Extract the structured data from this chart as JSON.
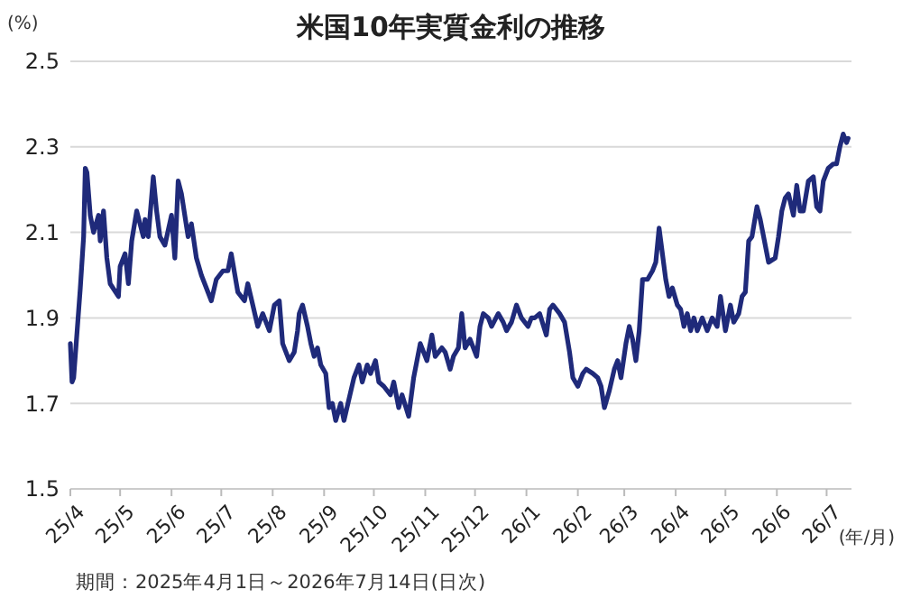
{
  "chart_data": {
    "type": "line",
    "title": "米国10年実質金利の推移",
    "ylabel": "(%)",
    "xlabel": "(年/月)",
    "annotations": [
      "期間：2025年4月1日～2026年7月14日(日次)"
    ],
    "xlim": [
      "2025-04-01",
      "2026-07-16"
    ],
    "xticks": [
      {
        "value": "2025-04-01",
        "label": "25/4"
      },
      {
        "value": "2025-05-01",
        "label": "25/5"
      },
      {
        "value": "2025-06-01",
        "label": "25/6"
      },
      {
        "value": "2025-07-01",
        "label": "25/7"
      },
      {
        "value": "2025-08-01",
        "label": "25/8"
      },
      {
        "value": "2025-09-01",
        "label": "25/9"
      },
      {
        "value": "2025-10-01",
        "label": "25/10"
      },
      {
        "value": "2025-11-01",
        "label": "25/11"
      },
      {
        "value": "2025-12-01",
        "label": "25/12"
      },
      {
        "value": "2026-01-01",
        "label": "26/1"
      },
      {
        "value": "2026-02-01",
        "label": "26/2"
      },
      {
        "value": "2026-03-01",
        "label": "26/3"
      },
      {
        "value": "2026-04-01",
        "label": "26/4"
      },
      {
        "value": "2026-05-01",
        "label": "26/5"
      },
      {
        "value": "2026-06-01",
        "label": "26/6"
      },
      {
        "value": "2026-07-01",
        "label": "26/7"
      }
    ],
    "ylim": [
      1.5,
      2.5
    ],
    "yticks": [
      1.5,
      1.7,
      1.9,
      2.1,
      2.3,
      2.5
    ],
    "grid": "y",
    "marker": "none",
    "line_style": "solid",
    "x": [
      "2025-04-01",
      "2025-04-02",
      "2025-04-03",
      "2025-04-07",
      "2025-04-09",
      "2025-04-10",
      "2025-04-11",
      "2025-04-13",
      "2025-04-15",
      "2025-04-18",
      "2025-04-19",
      "2025-04-21",
      "2025-04-23",
      "2025-04-25",
      "2025-04-30",
      "2025-05-01",
      "2025-05-04",
      "2025-05-06",
      "2025-05-08",
      "2025-05-11",
      "2025-05-15",
      "2025-05-16",
      "2025-05-18",
      "2025-05-21",
      "2025-05-23",
      "2025-05-25",
      "2025-05-28",
      "2025-06-01",
      "2025-06-03",
      "2025-06-05",
      "2025-06-07",
      "2025-06-11",
      "2025-06-13",
      "2025-06-16",
      "2025-06-19",
      "2025-06-22",
      "2025-06-25",
      "2025-06-28",
      "2025-07-02",
      "2025-07-05",
      "2025-07-07",
      "2025-07-11",
      "2025-07-15",
      "2025-07-17",
      "2025-07-20",
      "2025-07-23",
      "2025-07-26",
      "2025-07-30",
      "2025-08-02",
      "2025-08-05",
      "2025-08-07",
      "2025-08-11",
      "2025-08-14",
      "2025-08-16",
      "2025-08-17",
      "2025-08-19",
      "2025-08-22",
      "2025-08-24",
      "2025-08-26",
      "2025-08-28",
      "2025-08-30",
      "2025-09-02",
      "2025-09-04",
      "2025-09-06",
      "2025-09-08",
      "2025-09-11",
      "2025-09-13",
      "2025-09-16",
      "2025-09-19",
      "2025-09-22",
      "2025-09-24",
      "2025-09-27",
      "2025-09-29",
      "2025-10-02",
      "2025-10-04",
      "2025-10-07",
      "2025-10-11",
      "2025-10-13",
      "2025-10-16",
      "2025-10-18",
      "2025-10-22",
      "2025-10-25",
      "2025-10-27",
      "2025-10-29",
      "2025-11-02",
      "2025-11-05",
      "2025-11-07",
      "2025-11-11",
      "2025-11-13",
      "2025-11-16",
      "2025-11-18",
      "2025-11-21",
      "2025-11-23",
      "2025-11-25",
      "2025-11-28",
      "2025-12-02",
      "2025-12-04",
      "2025-12-06",
      "2025-12-09",
      "2025-12-11",
      "2025-12-15",
      "2025-12-18",
      "2025-12-20",
      "2025-12-23",
      "2025-12-26",
      "2025-12-29",
      "2026-01-02",
      "2026-01-04",
      "2026-01-06",
      "2026-01-09",
      "2026-01-13",
      "2026-01-15",
      "2026-01-17",
      "2026-01-21",
      "2026-01-24",
      "2026-01-27",
      "2026-01-29",
      "2026-02-01",
      "2026-02-04",
      "2026-02-06",
      "2026-02-10",
      "2026-02-13",
      "2026-02-15",
      "2026-02-17",
      "2026-02-20",
      "2026-02-23",
      "2026-02-25",
      "2026-02-27",
      "2026-03-02",
      "2026-03-04",
      "2026-03-06",
      "2026-03-08",
      "2026-03-10",
      "2026-03-12",
      "2026-03-15",
      "2026-03-18",
      "2026-03-20",
      "2026-03-22",
      "2026-03-24",
      "2026-03-26",
      "2026-03-28",
      "2026-03-30",
      "2026-04-02",
      "2026-04-04",
      "2026-04-06",
      "2026-04-08",
      "2026-04-10",
      "2026-04-12",
      "2026-04-14",
      "2026-04-17",
      "2026-04-20",
      "2026-04-23",
      "2026-04-26",
      "2026-04-28",
      "2026-05-01",
      "2026-05-04",
      "2026-05-06",
      "2026-05-09",
      "2026-05-11",
      "2026-05-13",
      "2026-05-15",
      "2026-05-17",
      "2026-05-20",
      "2026-05-22",
      "2026-05-25",
      "2026-05-27",
      "2026-05-31",
      "2026-06-02",
      "2026-06-04",
      "2026-06-06",
      "2026-06-08",
      "2026-06-11",
      "2026-06-13",
      "2026-06-15",
      "2026-06-17",
      "2026-06-20",
      "2026-06-23",
      "2026-06-25",
      "2026-06-27",
      "2026-06-29",
      "2026-07-02",
      "2026-07-05",
      "2026-07-07",
      "2026-07-09",
      "2026-07-11",
      "2026-07-13",
      "2026-07-14"
    ],
    "series": [
      {
        "color": "#1f2a7a",
        "values": [
          1.84,
          1.75,
          1.76,
          1.97,
          2.09,
          2.25,
          2.24,
          2.14,
          2.1,
          2.14,
          2.08,
          2.15,
          2.04,
          1.98,
          1.95,
          2.02,
          2.05,
          1.98,
          2.08,
          2.15,
          2.09,
          2.13,
          2.09,
          2.23,
          2.15,
          2.09,
          2.07,
          2.14,
          2.04,
          2.22,
          2.19,
          2.09,
          2.12,
          2.04,
          2.0,
          1.97,
          1.94,
          1.99,
          2.01,
          2.01,
          2.05,
          1.96,
          1.94,
          1.98,
          1.93,
          1.88,
          1.91,
          1.87,
          1.93,
          1.94,
          1.84,
          1.8,
          1.82,
          1.87,
          1.91,
          1.93,
          1.88,
          1.84,
          1.81,
          1.83,
          1.79,
          1.77,
          1.69,
          1.7,
          1.66,
          1.7,
          1.66,
          1.71,
          1.76,
          1.79,
          1.75,
          1.79,
          1.77,
          1.8,
          1.75,
          1.74,
          1.72,
          1.75,
          1.69,
          1.72,
          1.67,
          1.76,
          1.8,
          1.84,
          1.8,
          1.86,
          1.81,
          1.83,
          1.82,
          1.78,
          1.81,
          1.83,
          1.91,
          1.83,
          1.85,
          1.81,
          1.88,
          1.91,
          1.9,
          1.88,
          1.91,
          1.89,
          1.87,
          1.89,
          1.93,
          1.9,
          1.88,
          1.9,
          1.9,
          1.91,
          1.86,
          1.92,
          1.93,
          1.91,
          1.89,
          1.82,
          1.76,
          1.74,
          1.77,
          1.78,
          1.77,
          1.76,
          1.74,
          1.69,
          1.73,
          1.78,
          1.8,
          1.76,
          1.84,
          1.88,
          1.85,
          1.8,
          1.87,
          1.99,
          1.99,
          2.01,
          2.03,
          2.11,
          2.05,
          1.99,
          1.95,
          1.97,
          1.93,
          1.92,
          1.88,
          1.91,
          1.87,
          1.9,
          1.87,
          1.9,
          1.87,
          1.9,
          1.88,
          1.95,
          1.87,
          1.93,
          1.89,
          1.91,
          1.95,
          1.96,
          2.08,
          2.09,
          2.16,
          2.13,
          2.07,
          2.03,
          2.04,
          2.09,
          2.15,
          2.18,
          2.19,
          2.14,
          2.21,
          2.15,
          2.15,
          2.22,
          2.23,
          2.16,
          2.15,
          2.22,
          2.25,
          2.26,
          2.26,
          2.3,
          2.33,
          2.31,
          2.32
        ]
      }
    ]
  }
}
